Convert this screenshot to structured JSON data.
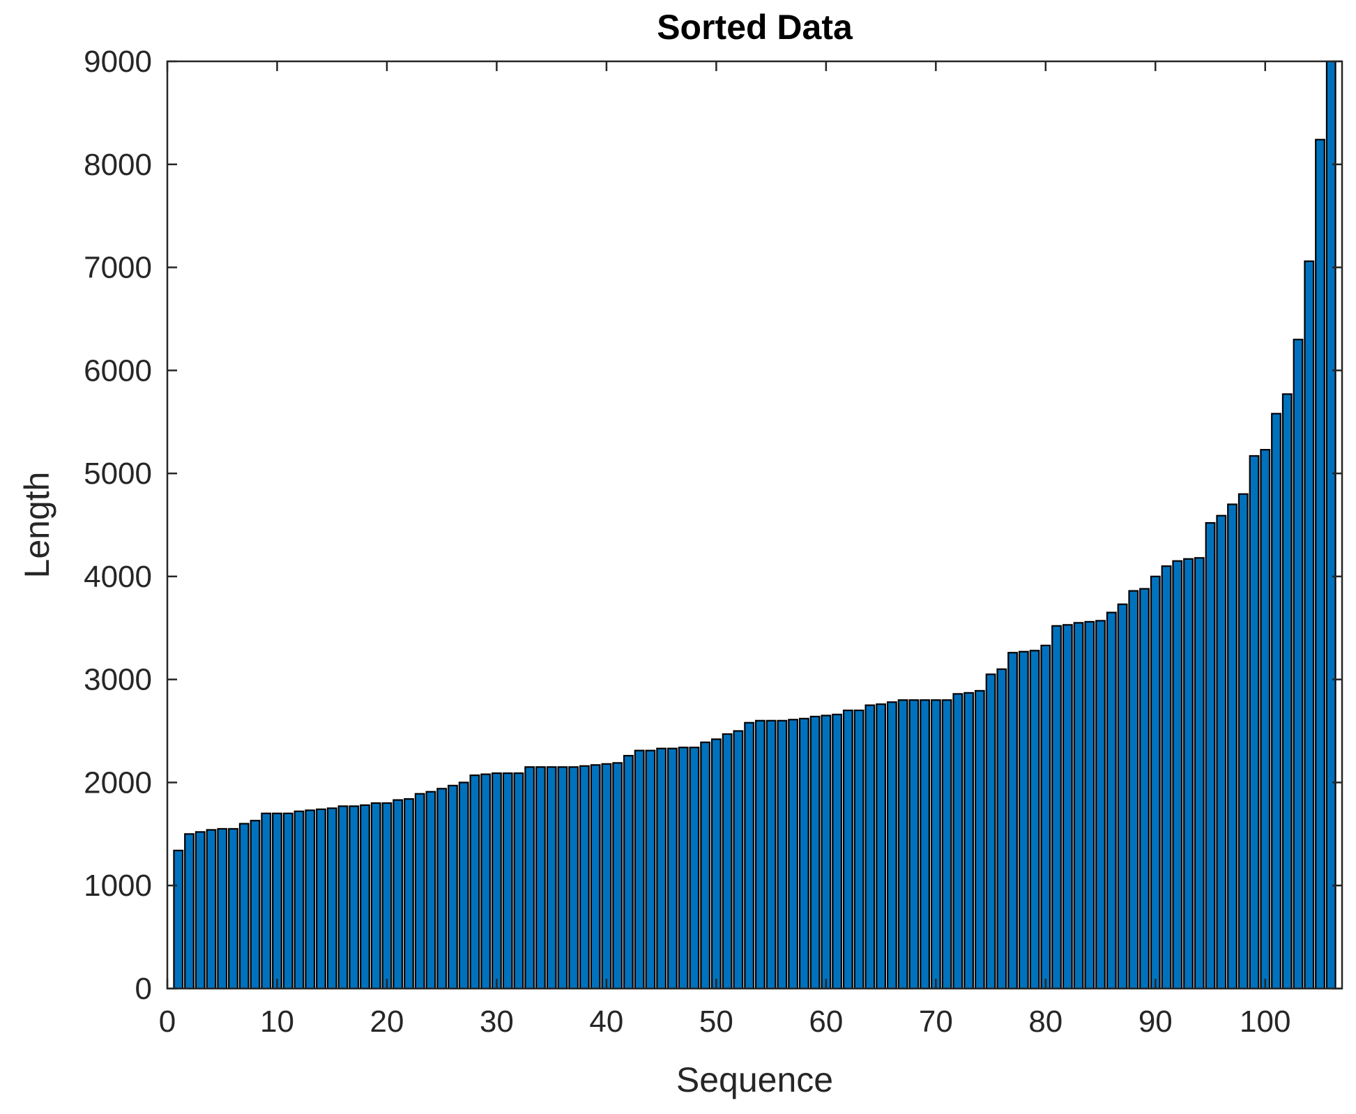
{
  "chart_data": {
    "type": "bar",
    "title": "Sorted Data",
    "xlabel": "Sequence",
    "ylabel": "Length",
    "xlim": [
      0,
      107
    ],
    "ylim": [
      0,
      9000
    ],
    "x_ticks": [
      0,
      10,
      20,
      30,
      40,
      50,
      60,
      70,
      80,
      90,
      100
    ],
    "y_ticks": [
      0,
      1000,
      2000,
      3000,
      4000,
      5000,
      6000,
      7000,
      8000,
      9000
    ],
    "grid": false,
    "legend": "none",
    "bar_color": "#0072BD",
    "edge_color": "#000000",
    "x": [
      1,
      2,
      3,
      4,
      5,
      6,
      7,
      8,
      9,
      10,
      11,
      12,
      13,
      14,
      15,
      16,
      17,
      18,
      19,
      20,
      21,
      22,
      23,
      24,
      25,
      26,
      27,
      28,
      29,
      30,
      31,
      32,
      33,
      34,
      35,
      36,
      37,
      38,
      39,
      40,
      41,
      42,
      43,
      44,
      45,
      46,
      47,
      48,
      49,
      50,
      51,
      52,
      53,
      54,
      55,
      56,
      57,
      58,
      59,
      60,
      61,
      62,
      63,
      64,
      65,
      66,
      67,
      68,
      69,
      70,
      71,
      72,
      73,
      74,
      75,
      76,
      77,
      78,
      79,
      80,
      81,
      82,
      83,
      84,
      85,
      86,
      87,
      88,
      89,
      90,
      91,
      92,
      93,
      94,
      95,
      96,
      97,
      98,
      99,
      100,
      101,
      102,
      103,
      104,
      105,
      106
    ],
    "values": [
      1340,
      1500,
      1520,
      1540,
      1550,
      1550,
      1600,
      1630,
      1700,
      1700,
      1700,
      1720,
      1730,
      1740,
      1750,
      1770,
      1770,
      1780,
      1800,
      1800,
      1830,
      1840,
      1890,
      1910,
      1940,
      1970,
      2000,
      2070,
      2080,
      2090,
      2090,
      2090,
      2150,
      2150,
      2150,
      2150,
      2150,
      2160,
      2170,
      2180,
      2190,
      2260,
      2310,
      2310,
      2330,
      2330,
      2340,
      2340,
      2390,
      2420,
      2470,
      2500,
      2580,
      2600,
      2600,
      2600,
      2610,
      2620,
      2640,
      2650,
      2660,
      2700,
      2700,
      2750,
      2760,
      2780,
      2800,
      2800,
      2800,
      2800,
      2800,
      2860,
      2870,
      2890,
      3050,
      3100,
      3260,
      3270,
      3280,
      3330,
      3520,
      3530,
      3550,
      3560,
      3570,
      3650,
      3730,
      3860,
      3880,
      4000,
      4100,
      4150,
      4170,
      4180,
      4520,
      4590,
      4700,
      4800,
      5170,
      5230,
      5580,
      5770,
      6300,
      7060,
      8240,
      9000
    ]
  }
}
